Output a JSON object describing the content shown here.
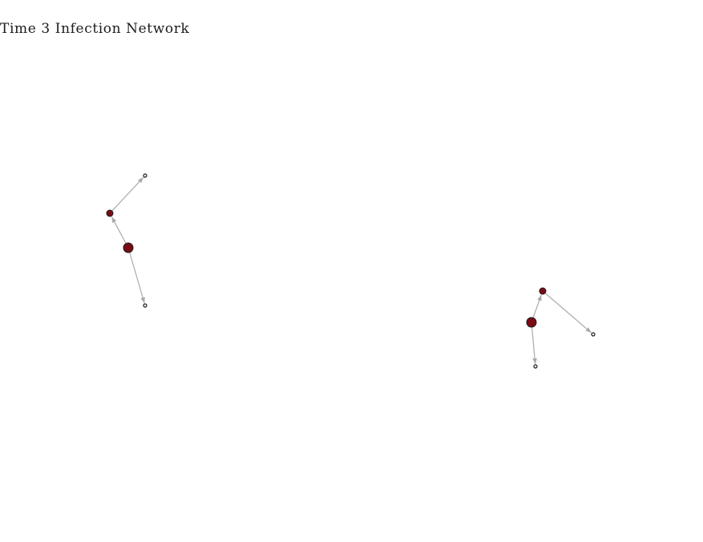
{
  "title": "Time 3 Infection Network",
  "colors": {
    "infected": "#7a0b14",
    "uninfected": "#ffffff",
    "node_stroke": "#1a1a1a",
    "edge": "#aaaaaa"
  },
  "network": {
    "nodes": [
      {
        "id": "a1",
        "status": "infected",
        "level": 2
      },
      {
        "id": "a2",
        "status": "infected",
        "level": 1
      },
      {
        "id": "a3",
        "status": "uninfected",
        "level": 0
      },
      {
        "id": "a4",
        "status": "uninfected",
        "level": 0
      },
      {
        "id": "b1",
        "status": "infected",
        "level": 2
      },
      {
        "id": "b2",
        "status": "infected",
        "level": 1
      },
      {
        "id": "b3",
        "status": "uninfected",
        "level": 0
      },
      {
        "id": "b4",
        "status": "uninfected",
        "level": 0
      }
    ],
    "edges": [
      {
        "from": "a1",
        "to": "a2"
      },
      {
        "from": "a2",
        "to": "a3"
      },
      {
        "from": "a1",
        "to": "a4"
      },
      {
        "from": "b1",
        "to": "b2"
      },
      {
        "from": "b2",
        "to": "b4"
      },
      {
        "from": "b1",
        "to": "b3"
      }
    ]
  }
}
